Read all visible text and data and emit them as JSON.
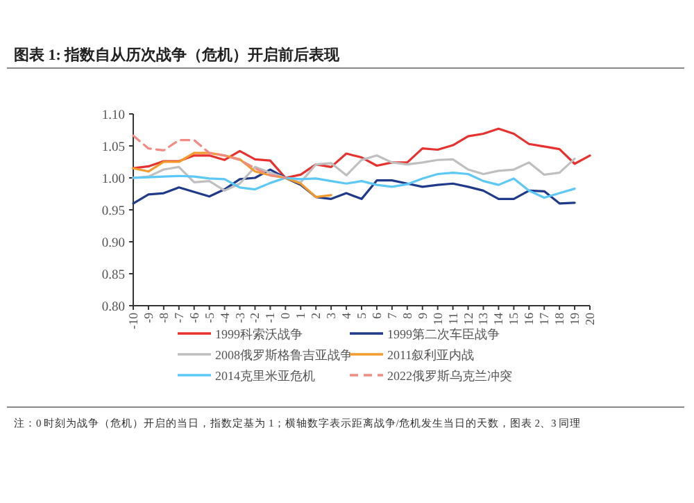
{
  "chart_data": {
    "type": "line",
    "title": "图表 1:    指数自从历次战争（危机）开启前后表现",
    "annotations": [
      "注：0 时刻为战争（危机）开启的当日，指数定基为 1；横轴数字表示距离战争/危机发生当日的天数，图表 2、3 同理"
    ],
    "x": [
      -10,
      -9,
      -8,
      -7,
      -6,
      -5,
      -4,
      -3,
      -2,
      -1,
      0,
      1,
      2,
      3,
      4,
      5,
      6,
      7,
      8,
      9,
      10,
      11,
      12,
      13,
      14,
      15,
      16,
      17,
      18,
      19,
      20
    ],
    "xlim": [
      -10,
      20
    ],
    "xticks": [
      -10,
      -9,
      -8,
      -7,
      -6,
      -5,
      -4,
      -3,
      -2,
      -1,
      0,
      1,
      2,
      3,
      4,
      5,
      6,
      7,
      8,
      9,
      10,
      11,
      12,
      13,
      14,
      15,
      16,
      17,
      18,
      19,
      20
    ],
    "ylim": [
      0.8,
      1.1
    ],
    "yticks": [
      {
        "value": 0.8,
        "label": "0.80"
      },
      {
        "value": 0.85,
        "label": "0.85"
      },
      {
        "value": 0.9,
        "label": "0.90"
      },
      {
        "value": 0.95,
        "label": "0.95"
      },
      {
        "value": 1.0,
        "label": "1.00"
      },
      {
        "value": 1.05,
        "label": "1.05"
      },
      {
        "value": 1.1,
        "label": "1.10"
      }
    ],
    "grid": false,
    "legend": "bottom",
    "series": [
      {
        "name": "1999科索沃战争",
        "color": "#e8312f",
        "values": [
          1.015,
          1.018,
          1.026,
          1.026,
          1.035,
          1.035,
          1.028,
          1.042,
          1.029,
          1.027,
          1.0,
          1.005,
          1.021,
          1.017,
          1.038,
          1.032,
          1.019,
          1.024,
          1.024,
          1.046,
          1.044,
          1.051,
          1.065,
          1.069,
          1.077,
          1.069,
          1.053,
          1.049,
          1.045,
          1.022,
          1.035
        ]
      },
      {
        "name": "1999第二次车臣战争",
        "color": "#1f3a8a",
        "values": [
          0.96,
          0.974,
          0.976,
          0.985,
          0.978,
          0.971,
          0.982,
          0.998,
          1.0,
          1.013,
          1.0,
          0.989,
          0.97,
          0.967,
          0.976,
          0.967,
          0.996,
          0.996,
          0.991,
          0.986,
          0.989,
          0.991,
          0.986,
          0.98,
          0.967,
          0.967,
          0.98,
          0.979,
          0.96,
          0.961,
          null
        ]
      },
      {
        "name": "2008俄罗斯格鲁吉亚战争",
        "color": "#bfbfbf",
        "values": [
          1.0,
          1.002,
          1.013,
          1.017,
          0.993,
          0.995,
          0.98,
          0.991,
          1.017,
          1.008,
          1.0,
          0.993,
          1.021,
          1.023,
          1.004,
          1.028,
          1.035,
          1.024,
          1.021,
          1.024,
          1.028,
          1.029,
          1.013,
          1.006,
          1.011,
          1.013,
          1.024,
          1.005,
          1.008,
          1.03,
          null
        ]
      },
      {
        "name": "2011叙利亚内战",
        "color": "#f39a2c",
        "values": [
          1.015,
          1.01,
          1.025,
          1.025,
          1.039,
          1.039,
          1.035,
          1.029,
          1.01,
          1.004,
          1.0,
          0.991,
          0.97,
          0.973,
          null,
          null,
          null,
          null,
          null,
          null,
          null,
          null,
          null,
          null,
          null,
          null,
          null,
          null,
          null,
          null,
          null
        ]
      },
      {
        "name": "2014克里米亚危机",
        "color": "#5bc8f5",
        "values": [
          1.0,
          1.001,
          1.002,
          1.003,
          1.002,
          0.999,
          0.998,
          0.985,
          0.982,
          0.992,
          1.0,
          0.998,
          0.999,
          0.995,
          0.991,
          0.995,
          0.989,
          0.986,
          0.99,
          0.999,
          1.006,
          1.008,
          1.006,
          0.995,
          0.989,
          0.999,
          0.98,
          0.969,
          0.976,
          0.983,
          null
        ]
      },
      {
        "name": "2022俄罗斯乌克兰冲突",
        "color": "#f28b82",
        "line_style": "dashed",
        "values": [
          1.066,
          1.046,
          1.043,
          1.059,
          1.059,
          1.039,
          1.035,
          1.028,
          1.015,
          1.004,
          1.0,
          null,
          null,
          null,
          null,
          null,
          null,
          null,
          null,
          null,
          null,
          null,
          null,
          null,
          null,
          null,
          null,
          null,
          null,
          null,
          null
        ]
      }
    ]
  }
}
